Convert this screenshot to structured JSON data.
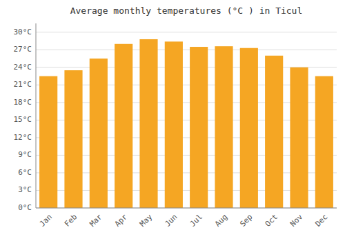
{
  "chart_data": {
    "type": "bar",
    "title": "Average monthly temperatures (°C ) in Ticul",
    "categories": [
      "Jan",
      "Feb",
      "Mar",
      "Apr",
      "May",
      "Jun",
      "Jul",
      "Aug",
      "Sep",
      "Oct",
      "Nov",
      "Dec"
    ],
    "values": [
      22.5,
      23.5,
      25.5,
      28.0,
      28.8,
      28.4,
      27.5,
      27.6,
      27.3,
      26.0,
      24.0,
      22.5
    ],
    "color": "#F5A623",
    "ylim": [
      0,
      31.5
    ],
    "yticks": [
      {
        "value": 0,
        "label": "0°C"
      },
      {
        "value": 3,
        "label": "3°C"
      },
      {
        "value": 6,
        "label": "6°C"
      },
      {
        "value": 9,
        "label": "9°C"
      },
      {
        "value": 12,
        "label": "12°C"
      },
      {
        "value": 15,
        "label": "15°C"
      },
      {
        "value": 18,
        "label": "18°C"
      },
      {
        "value": 21,
        "label": "21°C"
      },
      {
        "value": 24,
        "label": "24°C"
      },
      {
        "value": 27,
        "label": "27°C"
      },
      {
        "value": 30,
        "label": "30°C"
      }
    ],
    "grid": true
  }
}
